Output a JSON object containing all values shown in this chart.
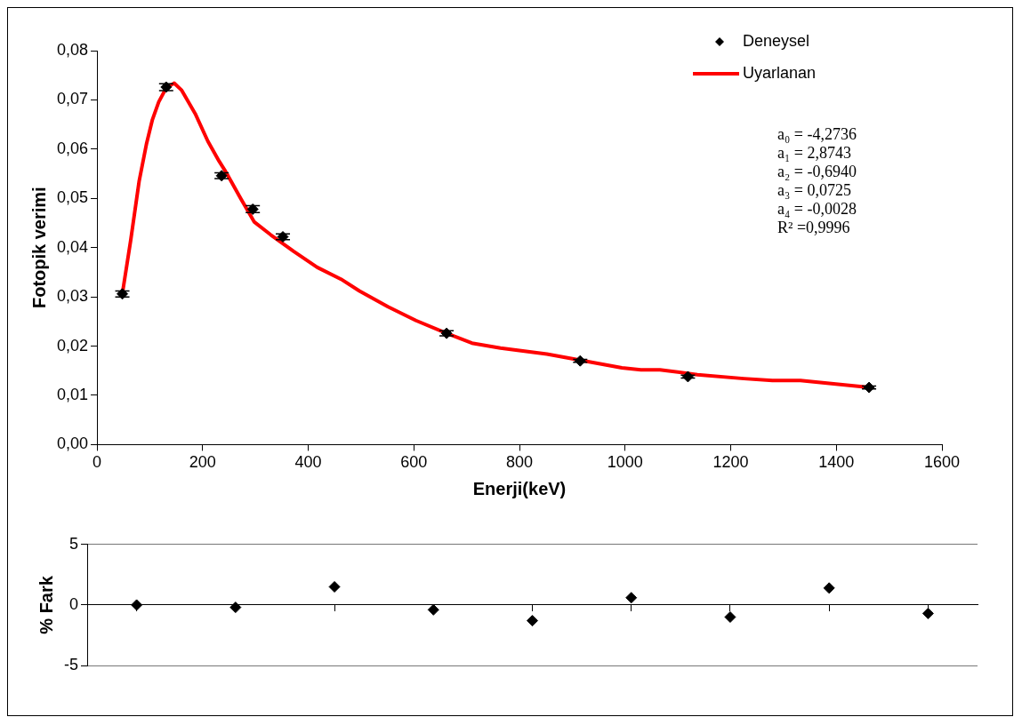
{
  "chart_data": [
    {
      "type": "scatter",
      "xlabel": "Enerji(keV)",
      "ylabel": "Fotopik verimi",
      "xlim": [
        0,
        1600
      ],
      "xticks": [
        0,
        200,
        400,
        600,
        800,
        1000,
        1200,
        1400,
        1600
      ],
      "ylim": [
        0,
        0.08
      ],
      "yticks": [
        {
          "value": 0,
          "label": "0,00"
        },
        {
          "value": 0.01,
          "label": "0,01"
        },
        {
          "value": 0.02,
          "label": "0,02"
        },
        {
          "value": 0.03,
          "label": "0,03"
        },
        {
          "value": 0.04,
          "label": "0,04"
        },
        {
          "value": 0.05,
          "label": "0,05"
        },
        {
          "value": 0.06,
          "label": "0,06"
        },
        {
          "value": 0.07,
          "label": "0,07"
        },
        {
          "value": 0.08,
          "label": "0,08"
        }
      ],
      "grid": false,
      "legend": "top right",
      "annotations": [
        "a₀ = -4,2736",
        "a₁ = 2,8743",
        "a₂ = -0,6940",
        "a₃ = 0,0725",
        "a₄ = -0,0028",
        "R² =0,9996"
      ],
      "series": [
        {
          "name": "Deneysel",
          "type": "scatter",
          "color": "#000000",
          "marker": "diamond",
          "x": [
            48,
            131,
            236,
            295,
            352,
            662,
            915,
            1119,
            1462
          ],
          "values": [
            0.0306,
            0.0726,
            0.0546,
            0.0478,
            0.0422,
            0.0226,
            0.017,
            0.0138,
            0.0116
          ],
          "errors": [
            0.0006,
            0.0007,
            0.0006,
            0.0007,
            0.0006,
            0.0005,
            0.0003,
            0.0003,
            0.0003
          ]
        },
        {
          "name": "Uyarlanan",
          "type": "line",
          "color": "#ff0000",
          "marker": "none",
          "x": [
            48,
            64,
            80,
            94,
            105,
            117,
            131,
            146,
            160,
            186,
            210,
            231,
            245,
            272,
            298,
            329,
            373,
            417,
            462,
            497,
            551,
            604,
            662,
            710,
            764,
            852,
            923,
            994,
            1030,
            1066,
            1137,
            1225,
            1279,
            1332,
            1462
          ],
          "values": [
            0.0306,
            0.0416,
            0.0536,
            0.0612,
            0.066,
            0.0696,
            0.0724,
            0.0734,
            0.072,
            0.0672,
            0.0616,
            0.0576,
            0.0552,
            0.05,
            0.0452,
            0.0426,
            0.0392,
            0.036,
            0.0336,
            0.0312,
            0.028,
            0.0252,
            0.0226,
            0.0206,
            0.0196,
            0.0184,
            0.017,
            0.0156,
            0.0152,
            0.0152,
            0.0142,
            0.0134,
            0.013,
            0.013,
            0.0116
          ]
        }
      ]
    },
    {
      "type": "scatter",
      "ylabel": "% Fark",
      "categories": [
        null,
        null,
        null,
        null,
        null,
        null,
        null,
        null,
        null
      ],
      "ylim": [
        -5,
        5
      ],
      "yticks": [
        -5,
        0,
        5
      ],
      "tick_labels": "y",
      "grid": "y",
      "series": [
        {
          "type": "scatter",
          "color": "#000000",
          "marker": "diamond",
          "values": [
            0,
            -0.2,
            1.5,
            -0.4,
            -1.3,
            0.6,
            -1,
            1.4,
            -0.7
          ]
        }
      ]
    }
  ]
}
